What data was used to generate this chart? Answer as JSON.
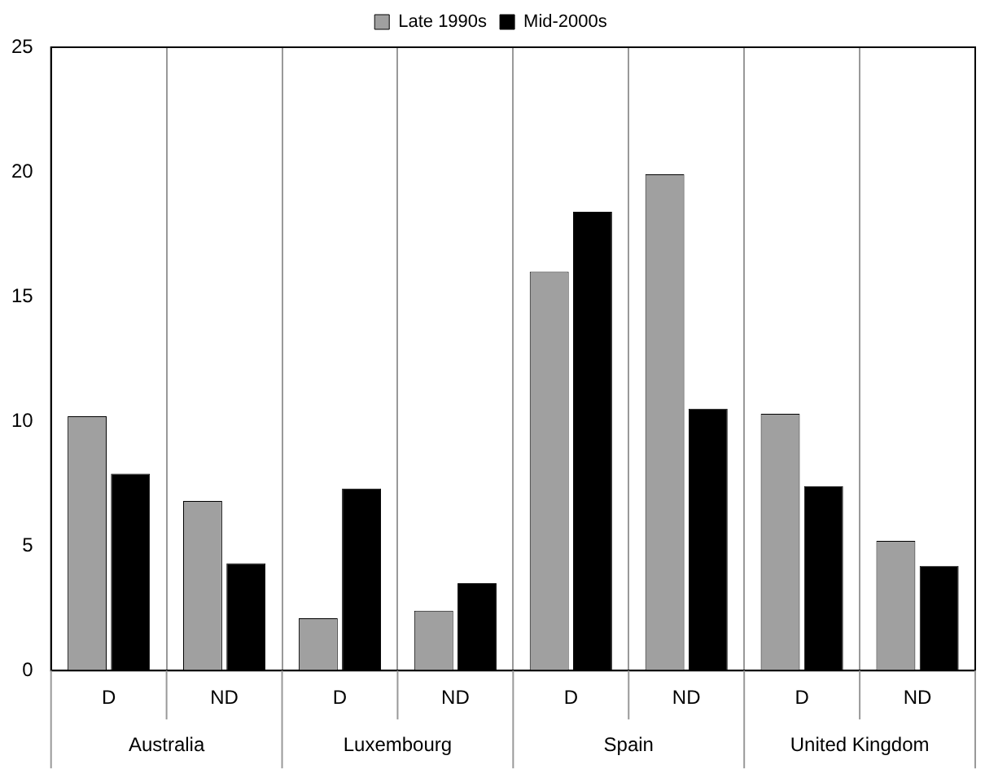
{
  "chart_data": {
    "type": "bar",
    "categories": [
      "D",
      "ND",
      "D",
      "ND",
      "D",
      "ND",
      "D",
      "ND"
    ],
    "series": [
      {
        "name": "Late 1990s",
        "color": "#a0a0a0",
        "values": [
          10.2,
          6.8,
          2.1,
          2.4,
          16.0,
          19.9,
          10.3,
          5.2
        ]
      },
      {
        "name": "Mid-2000s",
        "color": "#000000",
        "values": [
          7.9,
          4.3,
          7.3,
          3.5,
          18.4,
          10.5,
          7.4,
          4.2
        ]
      }
    ],
    "ylim": [
      0,
      25
    ],
    "yticks": [
      0,
      5,
      10,
      15,
      20,
      25
    ],
    "grid": "x",
    "legend": "top",
    "annotations": [
      "Australia",
      "Luxembourg",
      "Spain",
      "United Kingdom"
    ]
  }
}
